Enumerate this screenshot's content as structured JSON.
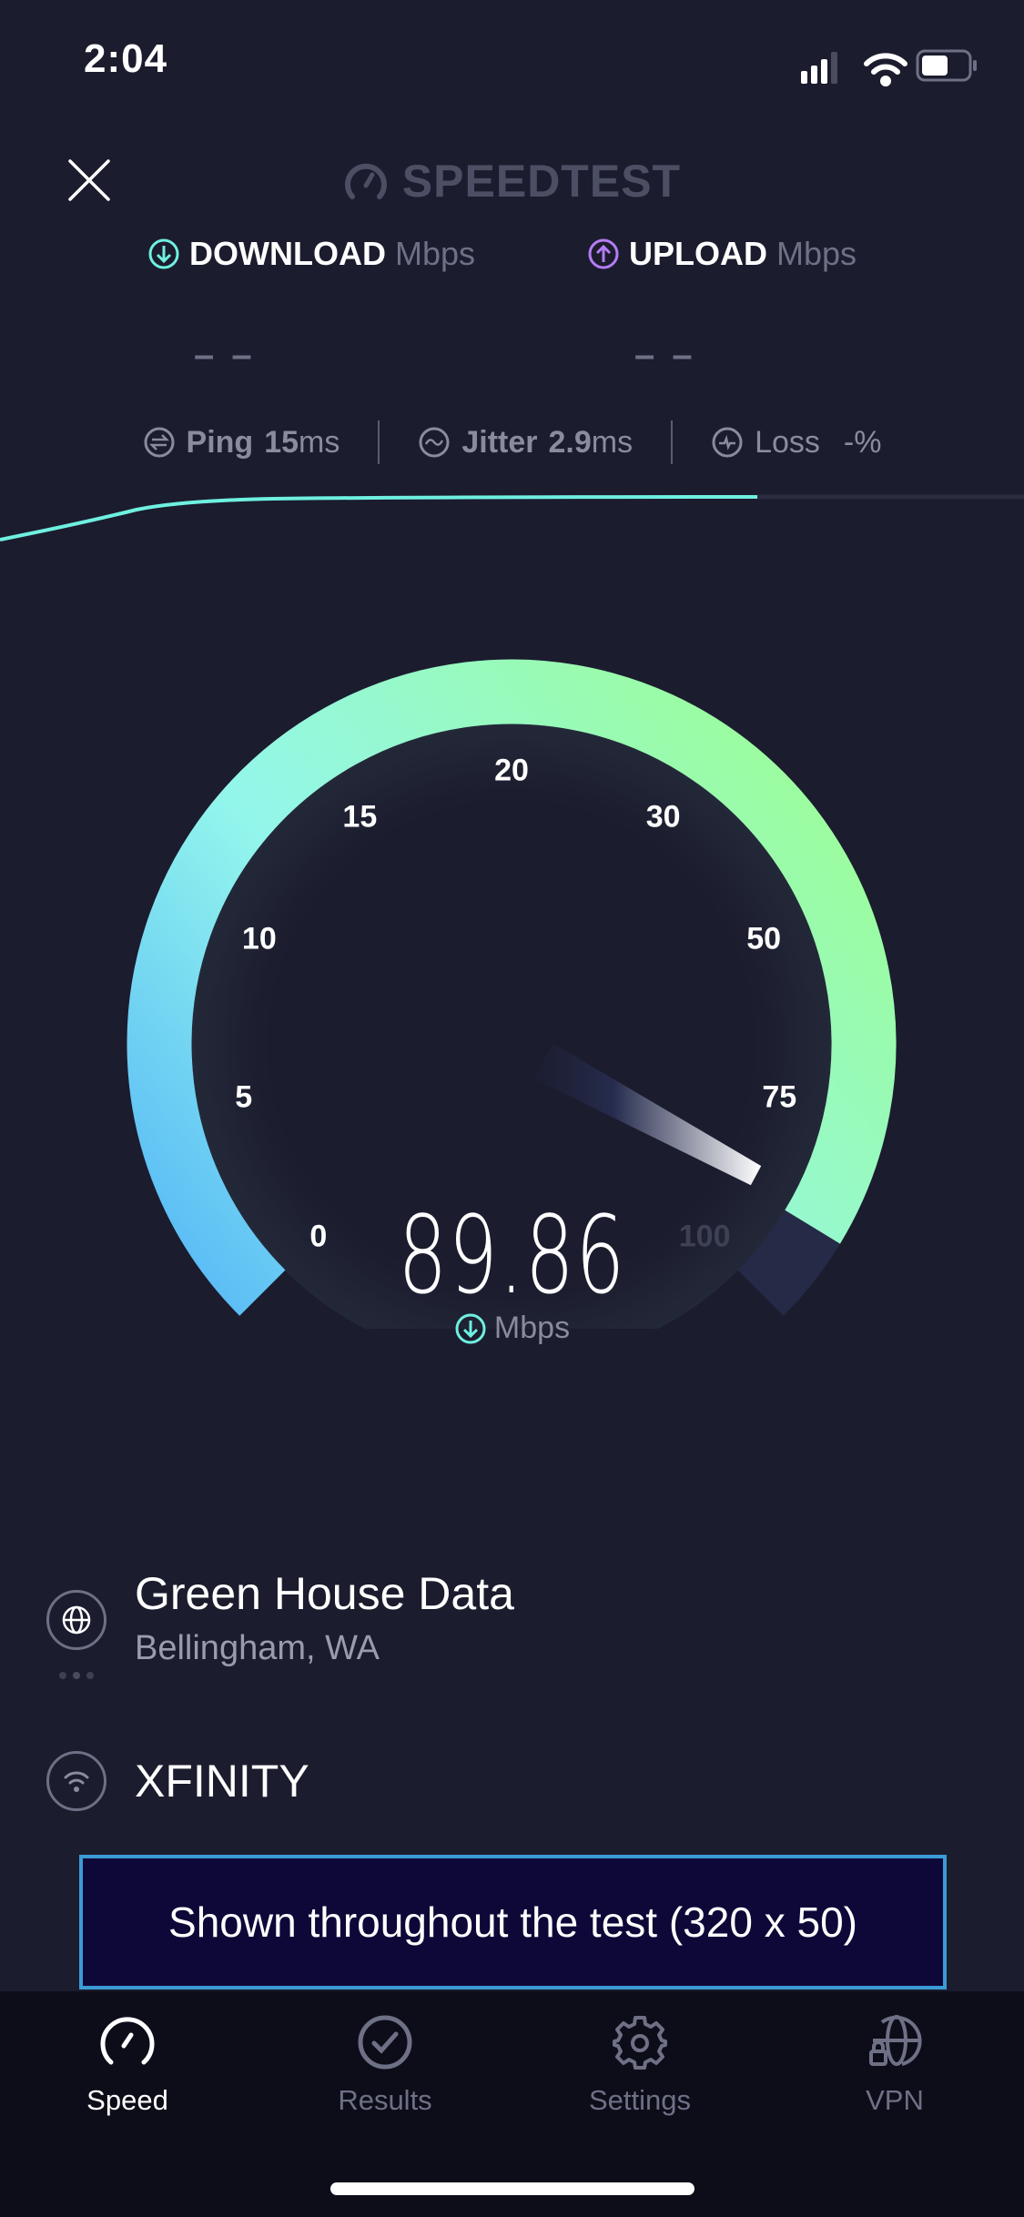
{
  "status_bar": {
    "time": "2:04",
    "signal_icon": "cellular-signal-icon",
    "wifi_icon": "wifi-icon",
    "battery_icon": "battery-icon"
  },
  "header": {
    "close_icon": "close-icon",
    "logo": "SPEEDTEST"
  },
  "results": {
    "download": {
      "label": "DOWNLOAD",
      "unit": "Mbps",
      "value": "– –",
      "color": "#6ff0e0"
    },
    "upload": {
      "label": "UPLOAD",
      "unit": "Mbps",
      "value": "– –",
      "color": "#b57cf5"
    }
  },
  "stats": {
    "ping": {
      "label": "Ping",
      "value": "15",
      "unit": "ms"
    },
    "jitter": {
      "label": "Jitter",
      "value": "2.9",
      "unit": "ms"
    },
    "loss": {
      "label": "Loss",
      "value": "-",
      "unit": "%"
    }
  },
  "gauge": {
    "ticks": [
      "0",
      "5",
      "10",
      "15",
      "20",
      "30",
      "50",
      "75",
      "100"
    ],
    "value": 89.86,
    "value_text": "89.86",
    "unit": "Mbps",
    "colors": {
      "start": "#55b6f7",
      "mid": "#93f6ec",
      "end": "#9bfca0",
      "track": "#252a47"
    }
  },
  "server": {
    "name": "Green House Data",
    "location": "Bellingham, WA",
    "icon": "globe-icon"
  },
  "isp": {
    "name": "XFINITY",
    "icon": "wifi-icon"
  },
  "ad": {
    "text": "Shown throughout the test (320 x 50)"
  },
  "tabs": [
    {
      "label": "Speed",
      "icon": "speedometer-icon",
      "active": true
    },
    {
      "label": "Results",
      "icon": "check-circle-icon",
      "active": false
    },
    {
      "label": "Settings",
      "icon": "gear-icon",
      "active": false
    },
    {
      "label": "VPN",
      "icon": "vpn-globe-lock-icon",
      "active": false
    }
  ]
}
